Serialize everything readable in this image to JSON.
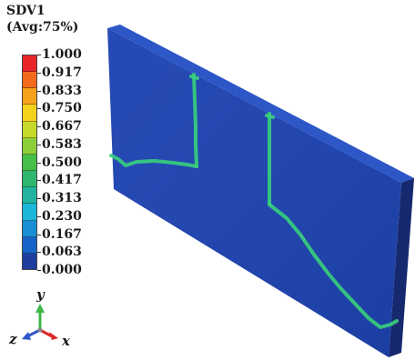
{
  "legend": {
    "variable": "SDV1",
    "averaging": "(Avg:75%)",
    "ticks": [
      "1.000",
      "0.917",
      "0.833",
      "0.750",
      "0.667",
      "0.583",
      "0.500",
      "0.417",
      "0.313",
      "0.230",
      "0.167",
      "0.063",
      "0.000"
    ],
    "band_colors": [
      "#e8262a",
      "#f36a1e",
      "#f7a21c",
      "#f2d21a",
      "#c6d92b",
      "#8dcf3a",
      "#44bf4a",
      "#2fb66f",
      "#22b4a0",
      "#1cb7d8",
      "#1a8fd6",
      "#1664c7",
      "#1d3e9f"
    ]
  },
  "triad": {
    "y_label": "y",
    "z_label": "z",
    "x_label": "x",
    "y_color": "#3cb84a",
    "z_color": "#2f58c9",
    "x_color": "#d92b2b"
  },
  "model": {
    "face_color": "#1d43b1",
    "top_color": "#2d57c7",
    "side_color": "#16296e",
    "crack_color": "#39d07c"
  }
}
